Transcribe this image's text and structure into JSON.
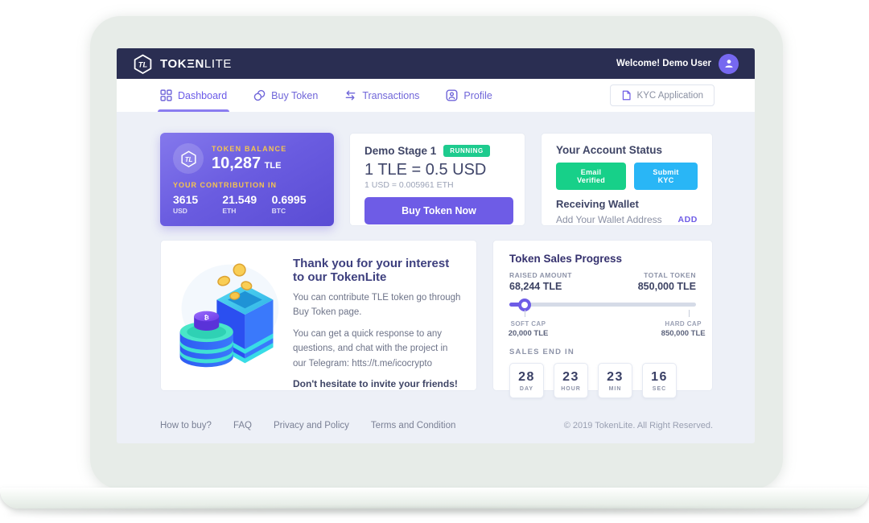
{
  "header": {
    "brand_bold": "TOKΞN",
    "brand_light": "LITE",
    "welcome": "Welcome! Demo User"
  },
  "nav": {
    "dashboard": "Dashboard",
    "buy_token": "Buy Token",
    "transactions": "Transactions",
    "profile": "Profile",
    "kyc_button": "KYC Application"
  },
  "balance_card": {
    "label": "TOKEN BALANCE",
    "amount": "10,287",
    "unit": "TLE",
    "contribution_label": "YOUR CONTRIBUTION IN",
    "contributions": [
      {
        "value": "3615",
        "currency": "USD"
      },
      {
        "value": "21.549",
        "currency": "ETH"
      },
      {
        "value": "0.6995",
        "currency": "BTC"
      }
    ]
  },
  "stage_card": {
    "title": "Demo Stage 1",
    "status": "RUNNING",
    "rate": "1 TLE = 0.5 USD",
    "sub_rate": "1 USD = 0.005961 ETH",
    "buy_button": "Buy Token Now"
  },
  "account_card": {
    "title": "Your Account Status",
    "email_badge": "Email Verified",
    "kyc_badge": "Submit KYC",
    "wallet_title": "Receiving Wallet",
    "wallet_hint": "Add Your Wallet Address",
    "add_link": "ADD"
  },
  "thankyou_card": {
    "heading": "Thank you for your interest to our TokenLite",
    "p1": "You can contribute TLE token go through Buy Token page.",
    "p2": "You can get a quick response to any questions, and chat with the project in our Telegram: htts://t.me/icocrypto",
    "p3": "Don't hesitate to invite your friends!"
  },
  "progress_card": {
    "title": "Token Sales Progress",
    "raised_label": "RAISED AMOUNT",
    "raised_value": "68,244 TLE",
    "total_label": "TOTAL TOKEN",
    "total_value": "850,000 TLE",
    "progress_pct": 8,
    "soft_cap_label": "SOFT CAP",
    "soft_cap_value": "20,000 TLE",
    "hard_cap_label": "HARD CAP",
    "hard_cap_value": "850,000 TLE",
    "sales_end_label": "SALES END IN",
    "countdown": [
      {
        "value": "28",
        "unit": "DAY"
      },
      {
        "value": "23",
        "unit": "HOUR"
      },
      {
        "value": "23",
        "unit": "MIN"
      },
      {
        "value": "16",
        "unit": "SEC"
      }
    ]
  },
  "footer": {
    "links": [
      "How to buy?",
      "FAQ",
      "Privacy and Policy",
      "Terms and Condition"
    ],
    "copyright": "© 2019 TokenLite. All Right Reserved."
  },
  "colors": {
    "accent_purple": "#6E5CE6",
    "header_navy": "#2A2E52",
    "badge_green": "#1ECB8E",
    "badge_cyan": "#29B6F6",
    "gold": "#F5C44F"
  }
}
